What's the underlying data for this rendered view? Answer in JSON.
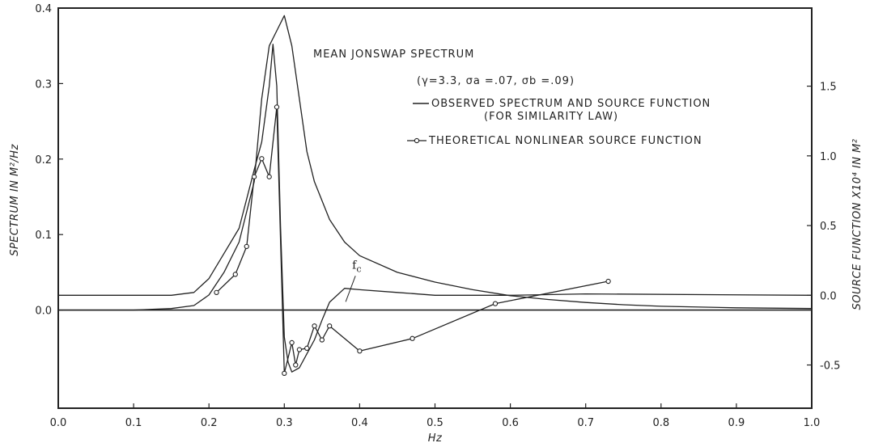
{
  "chart_data": {
    "type": "line",
    "title": "MEAN JONSWAP SPECTRUM",
    "subtitle": "(γ=3.3, σa =.07, σb =.09)",
    "xlabel": "Hz",
    "ylabel_left": "SPECTRUM IN M²/Hz",
    "ylabel_right": "SOURCE FUNCTION X10⁴ IN M²",
    "xlim": [
      0.0,
      1.0
    ],
    "ylim_left": [
      -0.13,
      0.4
    ],
    "ylim_right": [
      -0.81,
      2.06
    ],
    "x_ticks": [
      "0.0",
      "0.1",
      "0.2",
      "0.3",
      "0.4",
      "0.5",
      "0.6",
      "0.7",
      "0.8",
      "0.9",
      "1.0"
    ],
    "y_left_ticks": [
      "0.4",
      "0.3",
      "0.2",
      "0.1",
      "0.0"
    ],
    "y_right_ticks": [
      "1.5",
      "1.0",
      "0.5",
      "0.0",
      "-0.5"
    ],
    "legend": [
      "OBSERVED SPECTRUM AND SOURCE FUNCTION",
      "(FOR SIMILARITY LAW)",
      "THEORETICAL NONLINEAR SOURCE FUNCTION"
    ],
    "annotations": [
      {
        "text": "f",
        "sub": "c",
        "x": 0.36,
        "y_right": 0.0
      }
    ],
    "series": [
      {
        "name": "OBSERVED SPECTRUM",
        "axis": "left",
        "marker": "none",
        "points": [
          [
            0.0,
            0.0
          ],
          [
            0.1,
            0.0
          ],
          [
            0.15,
            0.002
          ],
          [
            0.18,
            0.006
          ],
          [
            0.2,
            0.02
          ],
          [
            0.22,
            0.05
          ],
          [
            0.24,
            0.09
          ],
          [
            0.26,
            0.17
          ],
          [
            0.27,
            0.28
          ],
          [
            0.28,
            0.35
          ],
          [
            0.29,
            0.37
          ],
          [
            0.3,
            0.39
          ],
          [
            0.31,
            0.35
          ],
          [
            0.32,
            0.28
          ],
          [
            0.33,
            0.21
          ],
          [
            0.34,
            0.17
          ],
          [
            0.36,
            0.12
          ],
          [
            0.38,
            0.09
          ],
          [
            0.4,
            0.072
          ],
          [
            0.45,
            0.05
          ],
          [
            0.5,
            0.037
          ],
          [
            0.55,
            0.027
          ],
          [
            0.6,
            0.019
          ],
          [
            0.65,
            0.014
          ],
          [
            0.7,
            0.01
          ],
          [
            0.75,
            0.007
          ],
          [
            0.8,
            0.005
          ],
          [
            0.9,
            0.003
          ],
          [
            1.0,
            0.002
          ]
        ]
      },
      {
        "name": "OBSERVED SOURCE FUNCTION",
        "axis": "right",
        "marker": "none",
        "points": [
          [
            0.0,
            0.0
          ],
          [
            0.15,
            0.0
          ],
          [
            0.18,
            0.02
          ],
          [
            0.2,
            0.12
          ],
          [
            0.22,
            0.3
          ],
          [
            0.24,
            0.48
          ],
          [
            0.26,
            0.9
          ],
          [
            0.27,
            1.1
          ],
          [
            0.28,
            1.5
          ],
          [
            0.285,
            1.8
          ],
          [
            0.29,
            1.5
          ],
          [
            0.295,
            0.5
          ],
          [
            0.3,
            -0.3
          ],
          [
            0.305,
            -0.48
          ],
          [
            0.31,
            -0.55
          ],
          [
            0.32,
            -0.52
          ],
          [
            0.33,
            -0.42
          ],
          [
            0.34,
            -0.32
          ],
          [
            0.35,
            -0.18
          ],
          [
            0.36,
            -0.05
          ],
          [
            0.38,
            0.05
          ],
          [
            0.4,
            0.04
          ],
          [
            0.45,
            0.02
          ],
          [
            0.5,
            0.0
          ],
          [
            0.6,
            0.0
          ],
          [
            0.7,
            0.01
          ],
          [
            1.0,
            0.0
          ]
        ]
      },
      {
        "name": "THEORETICAL NONLINEAR SOURCE FUNCTION",
        "axis": "right",
        "marker": "circle",
        "points": [
          [
            0.21,
            0.02
          ],
          [
            0.235,
            0.15
          ],
          [
            0.25,
            0.35
          ],
          [
            0.26,
            0.85
          ],
          [
            0.27,
            0.98
          ],
          [
            0.28,
            0.85
          ],
          [
            0.29,
            1.35
          ],
          [
            0.3,
            -0.56
          ],
          [
            0.31,
            -0.34
          ],
          [
            0.315,
            -0.5
          ],
          [
            0.32,
            -0.39
          ],
          [
            0.33,
            -0.38
          ],
          [
            0.34,
            -0.22
          ],
          [
            0.35,
            -0.32
          ],
          [
            0.36,
            -0.22
          ],
          [
            0.4,
            -0.4
          ],
          [
            0.47,
            -0.31
          ],
          [
            0.58,
            -0.06
          ],
          [
            0.73,
            0.1
          ]
        ]
      }
    ]
  }
}
